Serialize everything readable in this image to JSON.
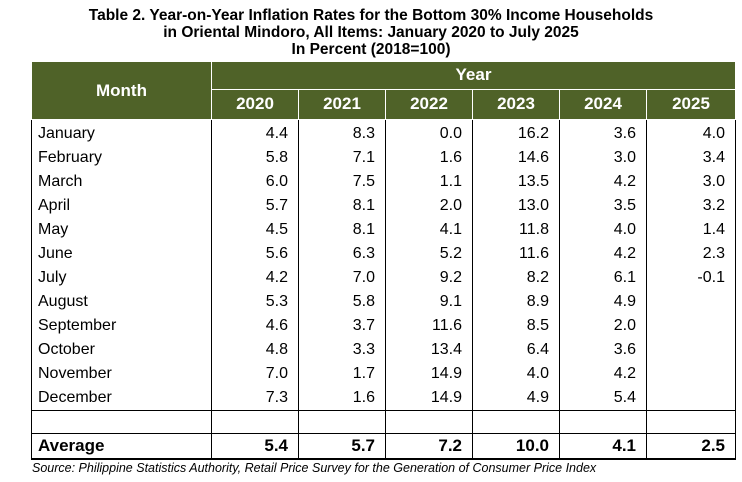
{
  "title": {
    "line1": "Table 2. Year-on-Year Inflation Rates for the Bottom 30% Income Households",
    "line2": "in Oriental Mindoro, All Items: January 2020 to July 2025",
    "line3": "In Percent (2018=100)"
  },
  "headers": {
    "month": "Month",
    "year": "Year",
    "years": [
      "2020",
      "2021",
      "2022",
      "2023",
      "2024",
      "2025"
    ]
  },
  "rows": [
    {
      "month": "January",
      "values": [
        "4.4",
        "8.3",
        "0.0",
        "16.2",
        "3.6",
        "4.0"
      ]
    },
    {
      "month": "February",
      "values": [
        "5.8",
        "7.1",
        "1.6",
        "14.6",
        "3.0",
        "3.4"
      ]
    },
    {
      "month": "March",
      "values": [
        "6.0",
        "7.5",
        "1.1",
        "13.5",
        "4.2",
        "3.0"
      ]
    },
    {
      "month": "April",
      "values": [
        "5.7",
        "8.1",
        "2.0",
        "13.0",
        "3.5",
        "3.2"
      ]
    },
    {
      "month": "May",
      "values": [
        "4.5",
        "8.1",
        "4.1",
        "11.8",
        "4.0",
        "1.4"
      ]
    },
    {
      "month": "June",
      "values": [
        "5.6",
        "6.3",
        "5.2",
        "11.6",
        "4.2",
        "2.3"
      ]
    },
    {
      "month": "July",
      "values": [
        "4.2",
        "7.0",
        "9.2",
        "8.2",
        "6.1",
        "-0.1"
      ]
    },
    {
      "month": "August",
      "values": [
        "5.3",
        "5.8",
        "9.1",
        "8.9",
        "4.9",
        ""
      ]
    },
    {
      "month": "September",
      "values": [
        "4.6",
        "3.7",
        "11.6",
        "8.5",
        "2.0",
        ""
      ]
    },
    {
      "month": "October",
      "values": [
        "4.8",
        "3.3",
        "13.4",
        "6.4",
        "3.6",
        ""
      ]
    },
    {
      "month": "November",
      "values": [
        "7.0",
        "1.7",
        "14.9",
        "4.0",
        "4.2",
        ""
      ]
    },
    {
      "month": "December",
      "values": [
        "7.3",
        "1.6",
        "14.9",
        "4.9",
        "5.4",
        ""
      ]
    }
  ],
  "average": {
    "label": "Average",
    "values": [
      "5.4",
      "5.7",
      "7.2",
      "10.0",
      "4.1",
      "2.5"
    ]
  },
  "source": "Source: Philippine Statistics Authority, Retail Price Survey for the Generation of Consumer Price Index",
  "colors": {
    "header_bg": "#4f6228",
    "header_text": "#ffffff"
  }
}
